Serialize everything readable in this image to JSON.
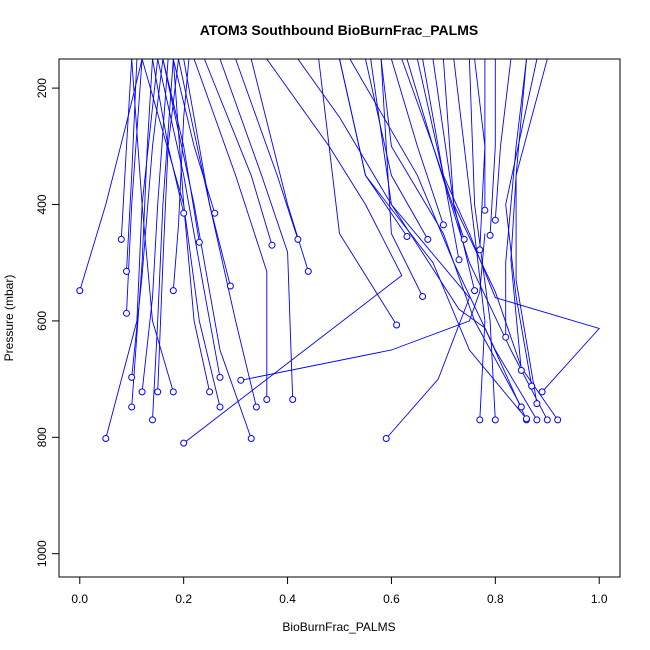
{
  "chart_data": {
    "type": "line",
    "title": "ATOM3 Southbound BioBurnFrac_PALMS",
    "xlabel": "BioBurnFrac_PALMS",
    "ylabel": "Pressure (mbar)",
    "xlim": [
      -0.04,
      1.04
    ],
    "ylim": [
      1040,
      150
    ],
    "y_reversed": true,
    "x_ticks": [
      0.0,
      0.2,
      0.4,
      0.6,
      0.8,
      1.0
    ],
    "x_tick_labels": [
      "0.0",
      "0.2",
      "0.4",
      "0.6",
      "0.8",
      "1.0"
    ],
    "y_ticks": [
      200,
      400,
      600,
      800,
      1000
    ],
    "y_tick_labels": [
      "200",
      "400",
      "600",
      "800",
      "1000"
    ],
    "series_color": "#0000ff",
    "markers": "open-circle",
    "series": [
      {
        "points": [
          [
            0.0,
            548
          ],
          [
            0.05,
            400
          ],
          [
            0.09,
            260
          ],
          [
            0.12,
            150
          ]
        ]
      },
      {
        "points": [
          [
            0.08,
            460
          ],
          [
            0.09,
            300
          ],
          [
            0.1,
            150
          ]
        ]
      },
      {
        "points": [
          [
            0.09,
            515
          ],
          [
            0.1,
            350
          ],
          [
            0.11,
            150
          ]
        ]
      },
      {
        "points": [
          [
            0.09,
            587
          ],
          [
            0.1,
            400
          ],
          [
            0.12,
            150
          ]
        ]
      },
      {
        "points": [
          [
            0.1,
            748
          ],
          [
            0.12,
            500
          ],
          [
            0.13,
            300
          ],
          [
            0.14,
            150
          ]
        ]
      },
      {
        "points": [
          [
            0.05,
            802
          ],
          [
            0.11,
            600
          ],
          [
            0.12,
            400
          ],
          [
            0.15,
            150
          ]
        ]
      },
      {
        "points": [
          [
            0.1,
            697
          ],
          [
            0.12,
            522
          ],
          [
            0.14,
            300
          ],
          [
            0.16,
            150
          ]
        ]
      },
      {
        "points": [
          [
            0.12,
            722
          ],
          [
            0.14,
            560
          ],
          [
            0.15,
            400
          ],
          [
            0.17,
            150
          ]
        ]
      },
      {
        "points": [
          [
            0.14,
            770
          ],
          [
            0.15,
            600
          ],
          [
            0.16,
            400
          ],
          [
            0.18,
            150
          ]
        ]
      },
      {
        "points": [
          [
            0.15,
            722
          ],
          [
            0.16,
            500
          ],
          [
            0.17,
            300
          ],
          [
            0.19,
            150
          ]
        ]
      },
      {
        "points": [
          [
            0.18,
            548
          ],
          [
            0.19,
            435
          ],
          [
            0.2,
            250
          ],
          [
            0.21,
            150
          ]
        ]
      },
      {
        "points": [
          [
            0.2,
            415
          ],
          [
            0.17,
            300
          ],
          [
            0.14,
            150
          ]
        ]
      },
      {
        "points": [
          [
            0.23,
            465
          ],
          [
            0.2,
            300
          ],
          [
            0.16,
            150
          ]
        ]
      },
      {
        "points": [
          [
            0.26,
            415
          ],
          [
            0.22,
            300
          ],
          [
            0.18,
            150
          ]
        ]
      },
      {
        "points": [
          [
            0.25,
            722
          ],
          [
            0.22,
            600
          ],
          [
            0.2,
            400
          ],
          [
            0.18,
            150
          ]
        ]
      },
      {
        "points": [
          [
            0.27,
            697
          ],
          [
            0.24,
            550
          ],
          [
            0.2,
            350
          ],
          [
            0.15,
            150
          ]
        ]
      },
      {
        "points": [
          [
            0.27,
            748
          ],
          [
            0.23,
            600
          ],
          [
            0.2,
            400
          ],
          [
            0.12,
            150
          ]
        ]
      },
      {
        "points": [
          [
            0.34,
            748
          ],
          [
            0.3,
            600
          ],
          [
            0.25,
            400
          ],
          [
            0.2,
            150
          ]
        ]
      },
      {
        "points": [
          [
            0.33,
            802
          ],
          [
            0.27,
            650
          ],
          [
            0.22,
            400
          ],
          [
            0.16,
            150
          ]
        ]
      },
      {
        "points": [
          [
            0.29,
            540
          ],
          [
            0.25,
            400
          ],
          [
            0.19,
            150
          ]
        ]
      },
      {
        "points": [
          [
            0.36,
            735
          ],
          [
            0.36,
            515
          ],
          [
            0.3,
            350
          ],
          [
            0.22,
            150
          ]
        ]
      },
      {
        "points": [
          [
            0.37,
            470
          ],
          [
            0.33,
            350
          ],
          [
            0.24,
            150
          ]
        ]
      },
      {
        "points": [
          [
            0.41,
            735
          ],
          [
            0.4,
            482
          ],
          [
            0.35,
            350
          ],
          [
            0.27,
            150
          ]
        ]
      },
      {
        "points": [
          [
            0.42,
            460
          ],
          [
            0.38,
            350
          ],
          [
            0.3,
            150
          ]
        ]
      },
      {
        "points": [
          [
            0.44,
            515
          ],
          [
            0.4,
            400
          ],
          [
            0.33,
            150
          ]
        ]
      },
      {
        "points": [
          [
            0.2,
            810
          ],
          [
            0.62,
            522
          ],
          [
            0.55,
            400
          ],
          [
            0.48,
            300
          ],
          [
            0.36,
            150
          ]
        ]
      },
      {
        "points": [
          [
            0.59,
            802
          ],
          [
            0.69,
            700
          ],
          [
            0.75,
            560
          ],
          [
            0.6,
            400
          ],
          [
            0.5,
            250
          ],
          [
            0.42,
            150
          ]
        ]
      },
      {
        "points": [
          [
            0.61,
            607
          ],
          [
            0.5,
            450
          ],
          [
            0.46,
            150
          ]
        ]
      },
      {
        "points": [
          [
            0.63,
            455
          ],
          [
            0.55,
            350
          ],
          [
            0.5,
            150
          ]
        ]
      },
      {
        "points": [
          [
            0.67,
            460
          ],
          [
            0.6,
            350
          ],
          [
            0.55,
            150
          ]
        ]
      },
      {
        "points": [
          [
            0.66,
            558
          ],
          [
            0.6,
            450
          ],
          [
            0.58,
            150
          ]
        ]
      },
      {
        "points": [
          [
            0.7,
            435
          ],
          [
            0.65,
            300
          ],
          [
            0.6,
            150
          ]
        ]
      },
      {
        "points": [
          [
            0.74,
            460
          ],
          [
            0.68,
            300
          ],
          [
            0.63,
            150
          ]
        ]
      },
      {
        "points": [
          [
            0.73,
            495
          ],
          [
            0.7,
            350
          ],
          [
            0.66,
            150
          ]
        ]
      },
      {
        "points": [
          [
            0.76,
            548
          ],
          [
            0.72,
            400
          ],
          [
            0.7,
            150
          ]
        ]
      },
      {
        "points": [
          [
            0.77,
            770
          ],
          [
            0.78,
            600
          ],
          [
            0.74,
            300
          ],
          [
            0.72,
            150
          ]
        ]
      },
      {
        "points": [
          [
            0.8,
            770
          ],
          [
            0.79,
            600
          ],
          [
            0.76,
            400
          ],
          [
            0.75,
            150
          ]
        ]
      },
      {
        "points": [
          [
            0.77,
            478
          ],
          [
            0.78,
            300
          ],
          [
            0.76,
            150
          ]
        ]
      },
      {
        "points": [
          [
            0.78,
            410
          ],
          [
            0.78,
            150
          ]
        ]
      },
      {
        "points": [
          [
            0.79,
            453
          ],
          [
            0.8,
            300
          ],
          [
            0.8,
            150
          ]
        ]
      },
      {
        "points": [
          [
            0.8,
            427
          ],
          [
            0.81,
            300
          ],
          [
            0.83,
            150
          ]
        ]
      },
      {
        "points": [
          [
            0.82,
            628
          ],
          [
            0.82,
            500
          ],
          [
            0.84,
            300
          ],
          [
            0.86,
            150
          ]
        ]
      },
      {
        "points": [
          [
            0.85,
            685
          ],
          [
            0.83,
            495
          ],
          [
            0.84,
            350
          ],
          [
            0.86,
            150
          ]
        ]
      },
      {
        "points": [
          [
            0.88,
            742
          ],
          [
            0.84,
            530
          ],
          [
            0.84,
            350
          ],
          [
            0.9,
            150
          ]
        ]
      },
      {
        "points": [
          [
            0.87,
            712
          ],
          [
            0.84,
            558
          ],
          [
            0.82,
            400
          ],
          [
            0.88,
            150
          ]
        ]
      },
      {
        "points": [
          [
            0.89,
            722
          ],
          [
            1.0,
            613
          ],
          [
            0.8,
            560
          ],
          [
            0.75,
            450
          ],
          [
            0.7,
            350
          ],
          [
            0.65,
            150
          ]
        ]
      },
      {
        "points": [
          [
            0.86,
            770
          ],
          [
            0.78,
            612
          ],
          [
            0.73,
            580
          ],
          [
            0.6,
            400
          ],
          [
            0.56,
            150
          ]
        ]
      },
      {
        "points": [
          [
            0.88,
            770
          ],
          [
            0.8,
            650
          ],
          [
            0.72,
            500
          ],
          [
            0.65,
            350
          ],
          [
            0.52,
            150
          ]
        ]
      },
      {
        "points": [
          [
            0.9,
            770
          ],
          [
            0.83,
            650
          ],
          [
            0.75,
            500
          ],
          [
            0.68,
            300
          ],
          [
            0.62,
            150
          ]
        ]
      },
      {
        "points": [
          [
            0.92,
            770
          ],
          [
            0.85,
            680
          ],
          [
            0.8,
            550
          ],
          [
            0.72,
            400
          ],
          [
            0.68,
            150
          ]
        ]
      },
      {
        "points": [
          [
            0.85,
            748
          ],
          [
            0.76,
            600
          ],
          [
            0.7,
            450
          ],
          [
            0.6,
            300
          ],
          [
            0.58,
            150
          ]
        ]
      },
      {
        "points": [
          [
            0.86,
            768
          ],
          [
            0.75,
            650
          ],
          [
            0.68,
            500
          ],
          [
            0.55,
            350
          ],
          [
            0.5,
            150
          ]
        ]
      },
      {
        "points": [
          [
            0.31,
            702
          ],
          [
            0.6,
            650
          ],
          [
            0.75,
            600
          ],
          [
            0.77,
            550
          ],
          [
            0.78,
            450
          ]
        ]
      },
      {
        "points": [
          [
            0.18,
            722
          ],
          [
            0.14,
            600
          ],
          [
            0.12,
            400
          ],
          [
            0.1,
            150
          ]
        ]
      }
    ]
  }
}
